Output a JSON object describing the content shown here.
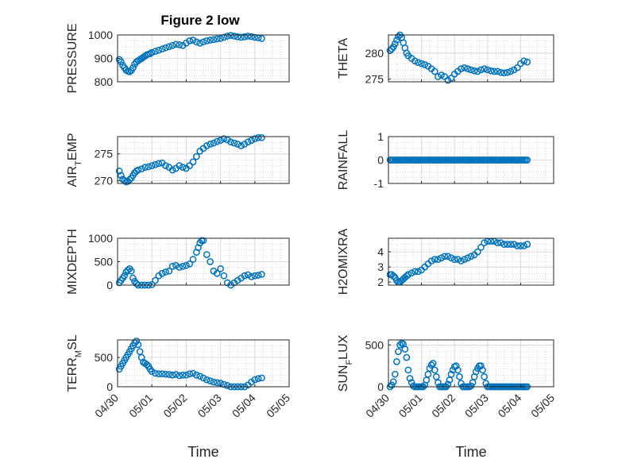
{
  "figure_title": "Figure 2 low",
  "colors": {
    "marker": "#0072bd",
    "axis": "#262626",
    "grid": "#b0b0b0"
  },
  "chart_data": [
    {
      "type": "scatter",
      "ylabel": "PRESSURE",
      "ylabel_sub": "",
      "ylabel_tail": "",
      "title": "Figure 2 low",
      "ylim": [
        800,
        1000
      ],
      "yticks": [
        800,
        900,
        1000
      ],
      "xlim": [
        0,
        5
      ],
      "grid": true,
      "xlabel": "",
      "xticklabels": [],
      "x": [
        0.05,
        0.1,
        0.15,
        0.2,
        0.25,
        0.3,
        0.35,
        0.4,
        0.45,
        0.5,
        0.55,
        0.6,
        0.65,
        0.7,
        0.75,
        0.8,
        0.85,
        0.9,
        0.95,
        1.0,
        1.1,
        1.2,
        1.3,
        1.4,
        1.5,
        1.6,
        1.7,
        1.8,
        1.9,
        2.0,
        2.1,
        2.2,
        2.3,
        2.4,
        2.5,
        2.6,
        2.7,
        2.8,
        2.9,
        3.0,
        3.1,
        3.2,
        3.3,
        3.4,
        3.5,
        3.6,
        3.7,
        3.8,
        3.9,
        4.0,
        4.1,
        4.2
      ],
      "y": [
        895,
        885,
        870,
        860,
        850,
        845,
        843,
        848,
        860,
        875,
        885,
        890,
        895,
        900,
        905,
        910,
        915,
        918,
        920,
        925,
        930,
        935,
        940,
        945,
        950,
        955,
        960,
        958,
        955,
        965,
        975,
        978,
        970,
        965,
        970,
        975,
        978,
        980,
        983,
        985,
        990,
        995,
        998,
        995,
        992,
        990,
        992,
        995,
        993,
        990,
        988,
        985
      ]
    },
    {
      "type": "scatter",
      "ylabel": "THETA",
      "ylabel_sub": "",
      "ylabel_tail": "",
      "ylim": [
        274.5,
        283.5
      ],
      "yticks": [
        275,
        280
      ],
      "xlim": [
        0,
        5
      ],
      "grid": true,
      "xlabel": "",
      "xticklabels": [],
      "x": [
        0.05,
        0.1,
        0.15,
        0.2,
        0.25,
        0.3,
        0.35,
        0.4,
        0.45,
        0.5,
        0.55,
        0.6,
        0.7,
        0.8,
        0.9,
        1.0,
        1.1,
        1.2,
        1.3,
        1.4,
        1.5,
        1.6,
        1.7,
        1.8,
        1.9,
        2.0,
        2.1,
        2.2,
        2.3,
        2.4,
        2.5,
        2.6,
        2.7,
        2.8,
        2.9,
        3.0,
        3.1,
        3.2,
        3.3,
        3.4,
        3.5,
        3.6,
        3.7,
        3.8,
        3.9,
        4.0,
        4.1,
        4.2
      ],
      "y": [
        280.5,
        280.8,
        281.2,
        281.8,
        282.5,
        283.2,
        283.5,
        283.0,
        282.0,
        281.0,
        280.0,
        279.5,
        279.0,
        278.5,
        278.2,
        278.0,
        277.8,
        277.5,
        277.0,
        276.5,
        275.5,
        275.8,
        275.5,
        274.8,
        275.2,
        276.0,
        276.5,
        277.0,
        277.2,
        277.0,
        276.8,
        276.6,
        276.5,
        276.8,
        277.0,
        276.8,
        276.6,
        276.5,
        276.5,
        276.3,
        276.2,
        276.3,
        276.5,
        276.8,
        277.2,
        278.0,
        278.5,
        278.3
      ]
    },
    {
      "type": "scatter",
      "ylabel": "AIR",
      "ylabel_sub": "T",
      "ylabel_tail": "EMP",
      "ylim": [
        269.5,
        278.2
      ],
      "yticks": [
        270,
        275
      ],
      "xlim": [
        0,
        5
      ],
      "grid": true,
      "xlabel": "",
      "xticklabels": [],
      "x": [
        0.05,
        0.1,
        0.15,
        0.2,
        0.25,
        0.3,
        0.35,
        0.4,
        0.45,
        0.5,
        0.55,
        0.6,
        0.7,
        0.8,
        0.9,
        1.0,
        1.1,
        1.2,
        1.3,
        1.4,
        1.5,
        1.6,
        1.7,
        1.8,
        1.9,
        2.0,
        2.1,
        2.2,
        2.3,
        2.4,
        2.5,
        2.6,
        2.7,
        2.8,
        2.9,
        3.0,
        3.1,
        3.2,
        3.3,
        3.4,
        3.5,
        3.6,
        3.7,
        3.8,
        3.9,
        4.0,
        4.1,
        4.2
      ],
      "y": [
        271.8,
        271.0,
        270.3,
        270.0,
        269.8,
        269.9,
        270.2,
        270.5,
        271.0,
        271.5,
        271.8,
        272.0,
        272.2,
        272.5,
        272.6,
        272.8,
        273.0,
        273.2,
        273.3,
        272.8,
        272.5,
        272.0,
        272.3,
        272.8,
        272.5,
        272.3,
        272.8,
        273.5,
        274.5,
        275.5,
        276.0,
        276.5,
        276.8,
        277.0,
        277.3,
        277.5,
        277.8,
        277.6,
        277.2,
        277.0,
        276.8,
        276.5,
        276.8,
        277.2,
        277.5,
        277.8,
        278.0,
        278.0
      ]
    },
    {
      "type": "scatter",
      "ylabel": "RAINFALL",
      "ylabel_sub": "",
      "ylabel_tail": "",
      "ylim": [
        -1,
        1
      ],
      "yticks": [
        -1,
        0,
        1
      ],
      "xlim": [
        0,
        5
      ],
      "grid": true,
      "xlabel": "",
      "xticklabels": [],
      "x": [
        0.05,
        0.1,
        0.15,
        0.2,
        0.25,
        0.3,
        0.35,
        0.4,
        0.45,
        0.5,
        0.55,
        0.6,
        0.65,
        0.7,
        0.75,
        0.8,
        0.85,
        0.9,
        0.95,
        1.0,
        1.05,
        1.1,
        1.15,
        1.2,
        1.25,
        1.3,
        1.35,
        1.4,
        1.45,
        1.5,
        1.55,
        1.6,
        1.65,
        1.7,
        1.75,
        1.8,
        1.85,
        1.9,
        1.95,
        2.0,
        2.05,
        2.1,
        2.15,
        2.2,
        2.25,
        2.3,
        2.35,
        2.4,
        2.45,
        2.5,
        2.55,
        2.6,
        2.65,
        2.7,
        2.75,
        2.8,
        2.85,
        2.9,
        2.95,
        3.0,
        3.05,
        3.1,
        3.15,
        3.2,
        3.25,
        3.3,
        3.35,
        3.4,
        3.45,
        3.5,
        3.55,
        3.6,
        3.65,
        3.7,
        3.75,
        3.8,
        3.85,
        3.9,
        3.95,
        4.0,
        4.05,
        4.1,
        4.15,
        4.2
      ],
      "y": [
        0,
        0,
        0,
        0,
        0,
        0,
        0,
        0,
        0,
        0,
        0,
        0,
        0,
        0,
        0,
        0,
        0,
        0,
        0,
        0,
        0,
        0,
        0,
        0,
        0,
        0,
        0,
        0,
        0,
        0,
        0,
        0,
        0,
        0,
        0,
        0,
        0,
        0,
        0,
        0,
        0,
        0,
        0,
        0,
        0,
        0,
        0,
        0,
        0,
        0,
        0,
        0,
        0,
        0,
        0,
        0,
        0,
        0,
        0,
        0,
        0,
        0,
        0,
        0,
        0,
        0,
        0,
        0,
        0,
        0,
        0,
        0,
        0,
        0,
        0,
        0,
        0,
        0,
        0,
        0,
        0,
        0,
        0,
        0
      ]
    },
    {
      "type": "scatter",
      "ylabel": "MIXDEPTH",
      "ylabel_sub": "",
      "ylabel_tail": "",
      "ylim": [
        0,
        1000
      ],
      "yticks": [
        0,
        500,
        1000
      ],
      "xlim": [
        0,
        5
      ],
      "grid": true,
      "xlabel": "",
      "xticklabels": [],
      "x": [
        0.05,
        0.1,
        0.15,
        0.2,
        0.25,
        0.3,
        0.35,
        0.4,
        0.45,
        0.5,
        0.55,
        0.6,
        0.7,
        0.8,
        0.9,
        1.0,
        1.1,
        1.2,
        1.3,
        1.4,
        1.5,
        1.6,
        1.7,
        1.8,
        1.9,
        2.0,
        2.1,
        2.2,
        2.3,
        2.35,
        2.4,
        2.45,
        2.5,
        2.6,
        2.7,
        2.8,
        2.9,
        3.0,
        3.1,
        3.2,
        3.3,
        3.4,
        3.5,
        3.6,
        3.7,
        3.8,
        3.9,
        4.0,
        4.1,
        4.2
      ],
      "y": [
        50,
        100,
        150,
        200,
        280,
        320,
        350,
        300,
        150,
        80,
        30,
        0,
        0,
        0,
        0,
        10,
        100,
        200,
        250,
        280,
        300,
        400,
        420,
        380,
        400,
        420,
        450,
        550,
        700,
        800,
        900,
        950,
        950,
        650,
        500,
        300,
        250,
        350,
        200,
        50,
        0,
        50,
        100,
        150,
        200,
        220,
        180,
        200,
        210,
        230
      ]
    },
    {
      "type": "scatter",
      "ylabel": "H2OMIXRA",
      "ylabel_sub": "",
      "ylabel_tail": "",
      "ylim": [
        1.8,
        4.9
      ],
      "yticks": [
        2,
        3,
        4
      ],
      "xlim": [
        0,
        5
      ],
      "grid": true,
      "xlabel": "",
      "xticklabels": [],
      "x": [
        0.05,
        0.1,
        0.15,
        0.2,
        0.25,
        0.3,
        0.35,
        0.4,
        0.45,
        0.5,
        0.55,
        0.6,
        0.7,
        0.8,
        0.9,
        1.0,
        1.1,
        1.2,
        1.3,
        1.4,
        1.5,
        1.6,
        1.7,
        1.8,
        1.9,
        2.0,
        2.1,
        2.2,
        2.3,
        2.4,
        2.5,
        2.6,
        2.7,
        2.8,
        2.9,
        3.0,
        3.1,
        3.2,
        3.3,
        3.4,
        3.5,
        3.6,
        3.7,
        3.8,
        3.9,
        4.0,
        4.1,
        4.2
      ],
      "y": [
        2.5,
        2.5,
        2.4,
        2.3,
        2.1,
        2.0,
        2.0,
        2.1,
        2.2,
        2.3,
        2.4,
        2.5,
        2.6,
        2.7,
        2.7,
        2.8,
        3.0,
        3.2,
        3.4,
        3.5,
        3.5,
        3.6,
        3.7,
        3.7,
        3.6,
        3.5,
        3.5,
        3.4,
        3.5,
        3.6,
        3.7,
        3.8,
        4.0,
        4.3,
        4.6,
        4.7,
        4.7,
        4.7,
        4.6,
        4.6,
        4.5,
        4.5,
        4.5,
        4.5,
        4.4,
        4.4,
        4.4,
        4.5
      ]
    },
    {
      "type": "scatter",
      "ylabel": "TERR",
      "ylabel_sub": "M",
      "ylabel_tail": "SL",
      "ylim": [
        0,
        800
      ],
      "yticks": [
        0,
        500
      ],
      "xlim": [
        0,
        5
      ],
      "grid": true,
      "xlabel": "Time",
      "xticklabels": [
        "04/30",
        "05/01",
        "05/02",
        "05/03",
        "05/04",
        "05/05"
      ],
      "x": [
        0.05,
        0.1,
        0.15,
        0.2,
        0.25,
        0.3,
        0.35,
        0.4,
        0.45,
        0.5,
        0.55,
        0.6,
        0.65,
        0.7,
        0.75,
        0.8,
        0.85,
        0.9,
        0.95,
        1.0,
        1.1,
        1.2,
        1.3,
        1.4,
        1.5,
        1.6,
        1.7,
        1.8,
        1.9,
        2.0,
        2.1,
        2.2,
        2.3,
        2.4,
        2.5,
        2.6,
        2.7,
        2.8,
        2.9,
        3.0,
        3.1,
        3.2,
        3.3,
        3.4,
        3.5,
        3.6,
        3.7,
        3.8,
        3.9,
        4.0,
        4.1,
        4.2
      ],
      "y": [
        300,
        350,
        400,
        450,
        500,
        550,
        600,
        650,
        700,
        750,
        780,
        720,
        600,
        500,
        420,
        400,
        380,
        350,
        300,
        260,
        230,
        220,
        220,
        215,
        210,
        200,
        210,
        190,
        200,
        200,
        220,
        230,
        200,
        180,
        150,
        120,
        100,
        80,
        70,
        60,
        40,
        20,
        0,
        0,
        0,
        0,
        0,
        30,
        80,
        120,
        140,
        150
      ]
    },
    {
      "type": "scatter",
      "ylabel": "SUN",
      "ylabel_sub": "F",
      "ylabel_tail": "LUX",
      "ylim": [
        0,
        560
      ],
      "yticks": [
        0,
        500
      ],
      "xlim": [
        0,
        5
      ],
      "grid": true,
      "xlabel": "Time",
      "xticklabels": [
        "04/30",
        "05/01",
        "05/02",
        "05/03",
        "05/04",
        "05/05"
      ],
      "x": [
        0.05,
        0.1,
        0.15,
        0.2,
        0.25,
        0.3,
        0.35,
        0.4,
        0.45,
        0.5,
        0.55,
        0.6,
        0.65,
        0.7,
        0.75,
        0.8,
        0.85,
        0.9,
        0.95,
        1.0,
        1.05,
        1.1,
        1.15,
        1.2,
        1.25,
        1.3,
        1.35,
        1.4,
        1.45,
        1.5,
        1.55,
        1.6,
        1.65,
        1.7,
        1.75,
        1.8,
        1.85,
        1.9,
        1.95,
        2.0,
        2.05,
        2.1,
        2.15,
        2.2,
        2.25,
        2.3,
        2.35,
        2.4,
        2.45,
        2.5,
        2.55,
        2.6,
        2.65,
        2.7,
        2.75,
        2.8,
        2.85,
        2.9,
        2.95,
        3.0,
        3.05,
        3.1,
        3.15,
        3.2,
        3.25,
        3.3,
        3.35,
        3.4,
        3.45,
        3.5,
        3.55,
        3.6,
        3.65,
        3.7,
        3.75,
        3.8,
        3.85,
        3.9,
        3.95,
        4.0,
        4.05,
        4.1,
        4.15,
        4.2
      ],
      "y": [
        0,
        20,
        60,
        150,
        300,
        420,
        500,
        520,
        510,
        450,
        350,
        200,
        100,
        50,
        10,
        0,
        0,
        0,
        0,
        0,
        0,
        20,
        80,
        150,
        220,
        260,
        280,
        200,
        120,
        50,
        0,
        0,
        0,
        0,
        0,
        30,
        80,
        150,
        200,
        240,
        250,
        200,
        120,
        40,
        0,
        0,
        0,
        0,
        0,
        10,
        50,
        120,
        180,
        220,
        250,
        250,
        200,
        120,
        40,
        0,
        0,
        0,
        0,
        0,
        0,
        0,
        0,
        0,
        0,
        0,
        0,
        0,
        0,
        0,
        0,
        0,
        0,
        0,
        0,
        0,
        0,
        0,
        0,
        0
      ]
    }
  ]
}
